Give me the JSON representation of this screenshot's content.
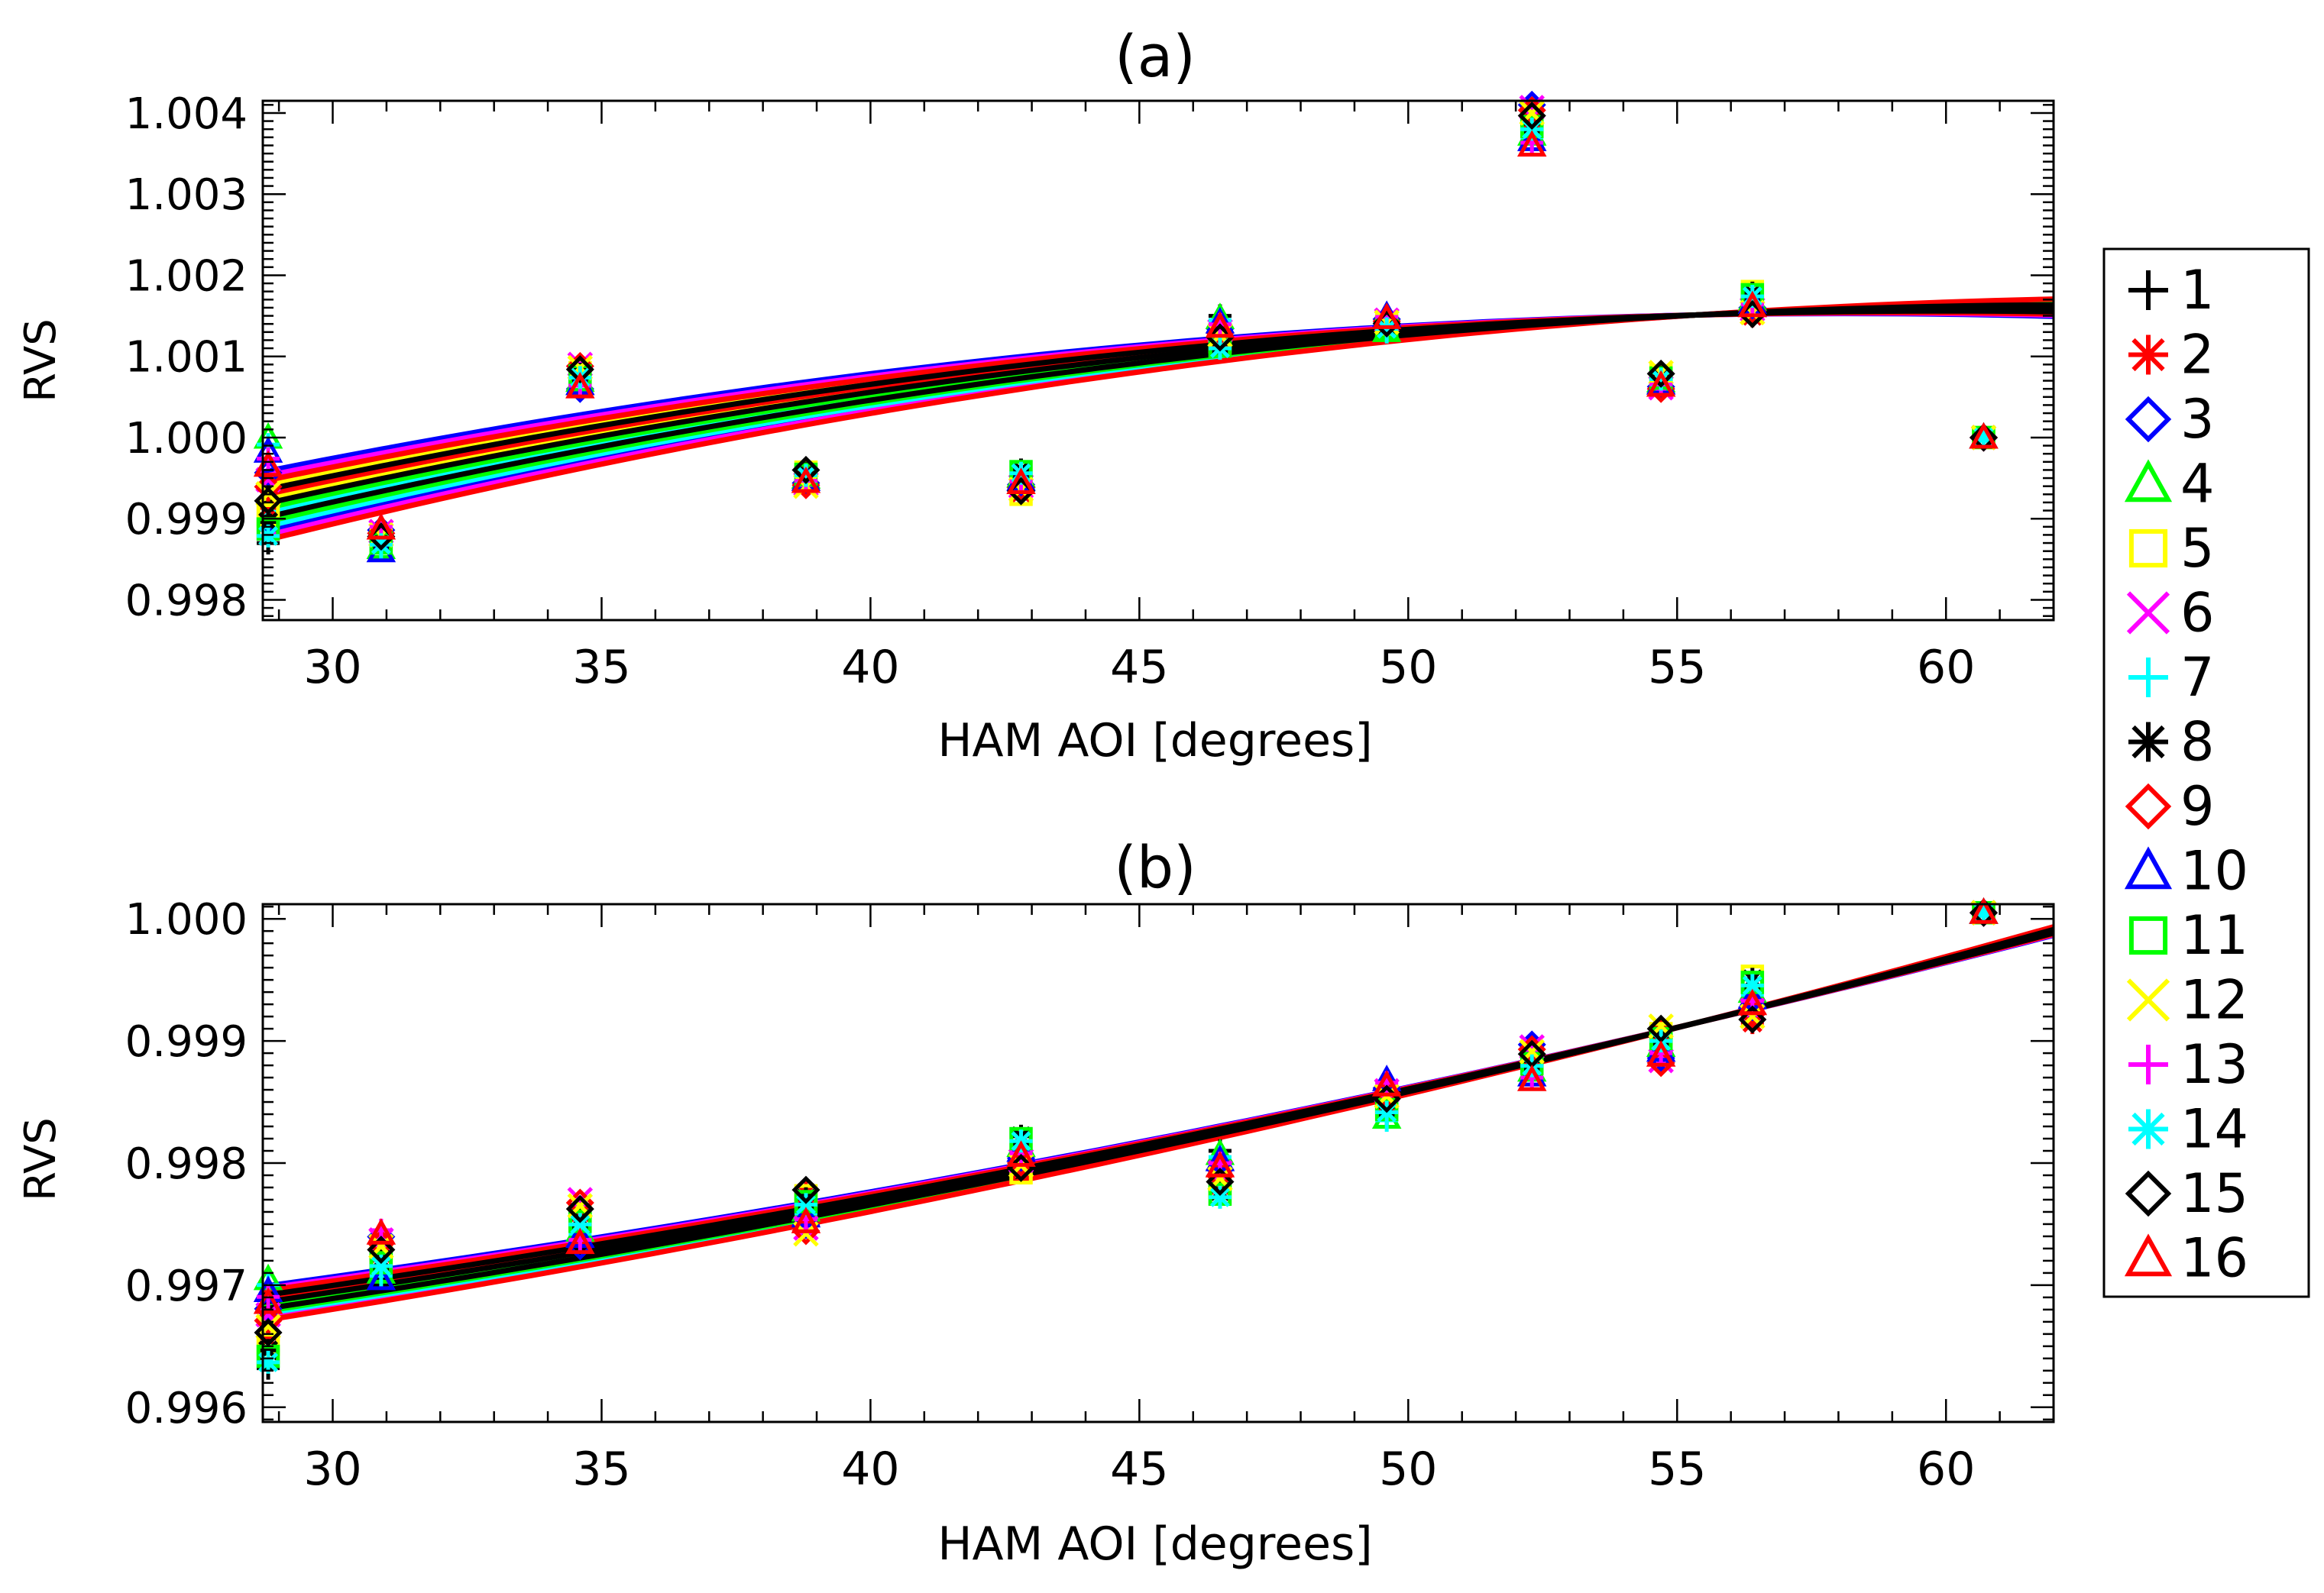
{
  "colors": {
    "1": "#000000",
    "2": "#ff0000",
    "3": "#0000ff",
    "4": "#00ff00",
    "5": "#ffff00",
    "6": "#ff00ff",
    "7": "#00ffff",
    "8": "#000000",
    "9": "#ff0000",
    "10": "#0000ff",
    "11": "#00ff00",
    "12": "#ffff00",
    "13": "#ff00ff",
    "14": "#00ffff",
    "15": "#000000",
    "16": "#ff0000"
  },
  "legend": {
    "entries": [
      {
        "label": "1",
        "symbol": "plus",
        "color": "#000000"
      },
      {
        "label": "2",
        "symbol": "asterisk",
        "color": "#ff0000"
      },
      {
        "label": "3",
        "symbol": "diamond",
        "color": "#0000ff"
      },
      {
        "label": "4",
        "symbol": "triangle",
        "color": "#00ff00"
      },
      {
        "label": "5",
        "symbol": "square",
        "color": "#ffff00"
      },
      {
        "label": "6",
        "symbol": "x",
        "color": "#ff00ff"
      },
      {
        "label": "7",
        "symbol": "plus",
        "color": "#00ffff"
      },
      {
        "label": "8",
        "symbol": "asterisk",
        "color": "#000000"
      },
      {
        "label": "9",
        "symbol": "diamond",
        "color": "#ff0000"
      },
      {
        "label": "10",
        "symbol": "triangle",
        "color": "#0000ff"
      },
      {
        "label": "11",
        "symbol": "square",
        "color": "#00ff00"
      },
      {
        "label": "12",
        "symbol": "x",
        "color": "#ffff00"
      },
      {
        "label": "13",
        "symbol": "plus",
        "color": "#ff00ff"
      },
      {
        "label": "14",
        "symbol": "asterisk",
        "color": "#00ffff"
      },
      {
        "label": "15",
        "symbol": "diamond",
        "color": "#000000"
      },
      {
        "label": "16",
        "symbol": "triangle",
        "color": "#ff0000"
      }
    ]
  },
  "chart_data": [
    {
      "type": "scatter",
      "title": "(a)",
      "xlabel": "HAM AOI [degrees]",
      "ylabel": "RVS",
      "xlim": [
        28.7,
        62.0
      ],
      "ylim": [
        0.99775,
        1.00415
      ],
      "xticks": [
        30,
        35,
        40,
        45,
        50,
        55,
        60
      ],
      "xtick_labels": [
        "30",
        "35",
        "40",
        "45",
        "50",
        "55",
        "60"
      ],
      "yticks": [
        0.998,
        0.999,
        1.0,
        1.001,
        1.002,
        1.003,
        1.004
      ],
      "ytick_labels": [
        "0.998",
        "0.999",
        "1.000",
        "1.001",
        "1.002",
        "1.003",
        "1.004"
      ],
      "x": [
        28.8,
        30.9,
        34.6,
        38.8,
        42.8,
        46.5,
        49.6,
        52.3,
        54.7,
        56.4,
        60.7
      ],
      "groups": {
        "high": [
          1.0,
          0.9989,
          1.0009,
          0.9996,
          0.9996,
          1.0015,
          1.0015,
          1.0041,
          1.0008,
          1.0018,
          1.0
        ],
        "low": [
          0.9987,
          0.9986,
          1.0006,
          0.9994,
          0.9993,
          1.0011,
          1.0013,
          1.0036,
          1.0006,
          1.0015,
          1.0
        ]
      },
      "fit_offsets": {
        "high": 5e-05,
        "low": -0.0001
      },
      "fit_curve": {
        "start": 0.99915,
        "mid": 1.001,
        "end": 1.0016
      }
    },
    {
      "type": "scatter",
      "title": "(b)",
      "xlabel": "HAM AOI [degrees]",
      "ylabel": "RVS",
      "xlim": [
        28.7,
        62.0
      ],
      "ylim": [
        0.99588,
        1.00012
      ],
      "xticks": [
        30,
        35,
        40,
        45,
        50,
        55,
        60
      ],
      "xtick_labels": [
        "30",
        "35",
        "40",
        "45",
        "50",
        "55",
        "60"
      ],
      "yticks": [
        0.996,
        0.997,
        0.998,
        0.999,
        1.0
      ],
      "ytick_labels": [
        "0.996",
        "0.997",
        "0.998",
        "0.999",
        "1.000"
      ],
      "x": [
        28.8,
        30.9,
        34.6,
        38.8,
        42.8,
        46.5,
        49.6,
        52.3,
        54.7,
        56.4,
        60.7
      ],
      "groups": {
        "high": [
          0.99705,
          0.99745,
          0.9977,
          0.99778,
          0.99822,
          0.9981,
          0.99868,
          0.99897,
          0.99912,
          0.99953,
          1.00005
        ],
        "low": [
          0.99632,
          0.99705,
          0.99732,
          0.99742,
          0.99792,
          0.99772,
          0.99835,
          0.99868,
          0.99882,
          0.99915,
          1.00005
        ]
      },
      "fit_curve": {
        "start": 0.99685,
        "mid": 0.99815,
        "end": 0.9999
      }
    }
  ]
}
